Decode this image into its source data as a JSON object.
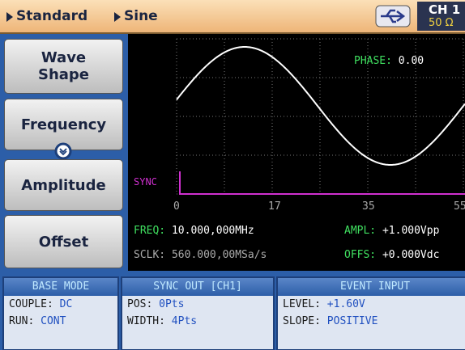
{
  "breadcrumb": [
    "Standard",
    "Sine"
  ],
  "channel": {
    "name": "CH 1",
    "impedance": "50 Ω"
  },
  "buttons": [
    "Wave Shape",
    "Frequency",
    "Amplitude",
    "Offset"
  ],
  "display": {
    "phase": {
      "label": "PHASE:",
      "value": "0.00"
    },
    "sync_label": "SYNC",
    "axis_labels": [
      "0",
      "17",
      "35",
      "55"
    ],
    "readouts": [
      {
        "label": "FREQ:",
        "value": "10.000,000MHz"
      },
      {
        "label": "AMPL:",
        "value": "+1.000Vpp"
      },
      {
        "label": "SCLK:",
        "value": "560.000,00MSa/s"
      },
      {
        "label": "OFFS:",
        "value": "+0.000Vdc"
      }
    ]
  },
  "panels": [
    {
      "title": "BASE MODE",
      "rows": [
        {
          "label": "COUPLE:",
          "value": "DC"
        },
        {
          "label": "RUN:",
          "value": "CONT"
        }
      ]
    },
    {
      "title": "SYNC OUT [CH1]",
      "rows": [
        {
          "label": "POS:",
          "value": "0Pts"
        },
        {
          "label": "WIDTH:",
          "value": "4Pts"
        }
      ]
    },
    {
      "title": "EVENT INPUT",
      "rows": [
        {
          "label": "LEVEL:",
          "value": "+1.60V"
        },
        {
          "label": "SLOPE:",
          "value": "POSITIVE"
        }
      ]
    }
  ]
}
